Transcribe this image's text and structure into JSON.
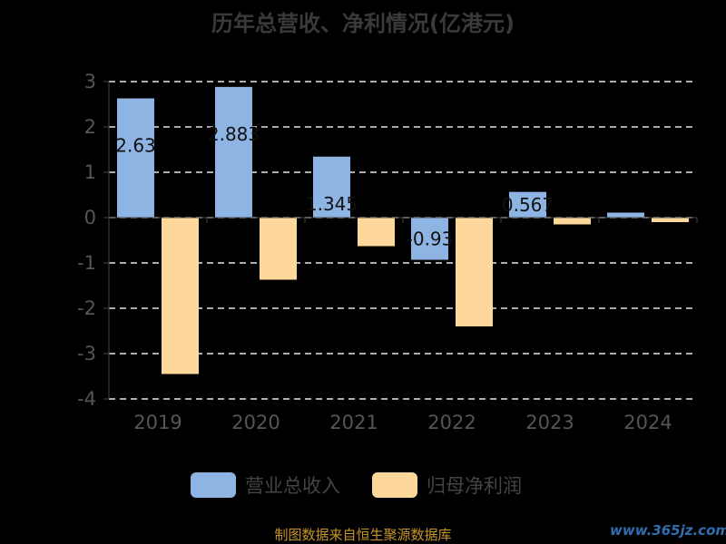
{
  "chart_data": {
    "type": "bar",
    "title": "历年总营收、净利情况(亿港元)",
    "categories": [
      "2019",
      "2020",
      "2021",
      "2022",
      "2023",
      "2024"
    ],
    "series": [
      {
        "name": "营业总收入",
        "color": "#8eb4e3",
        "values": [
          2.63,
          2.883,
          1.345,
          -0.93,
          0.567,
          0.11
        ],
        "labels": [
          "2.63",
          "2.883",
          "1.345",
          "-0.93",
          "0.567",
          ""
        ]
      },
      {
        "name": "归母净利润",
        "color": "#fdd89a",
        "values": [
          -3.45,
          -1.37,
          -0.63,
          -2.4,
          -0.15,
          -0.1
        ]
      }
    ],
    "ylim": [
      -4,
      3
    ],
    "yticks": [
      3,
      2,
      1,
      0,
      -1,
      -2,
      -3,
      -4
    ],
    "grid": true,
    "legend": "bottom"
  },
  "footer": {
    "source": "制图数据来自恒生聚源数据库",
    "watermark": "www.365jz.com"
  }
}
